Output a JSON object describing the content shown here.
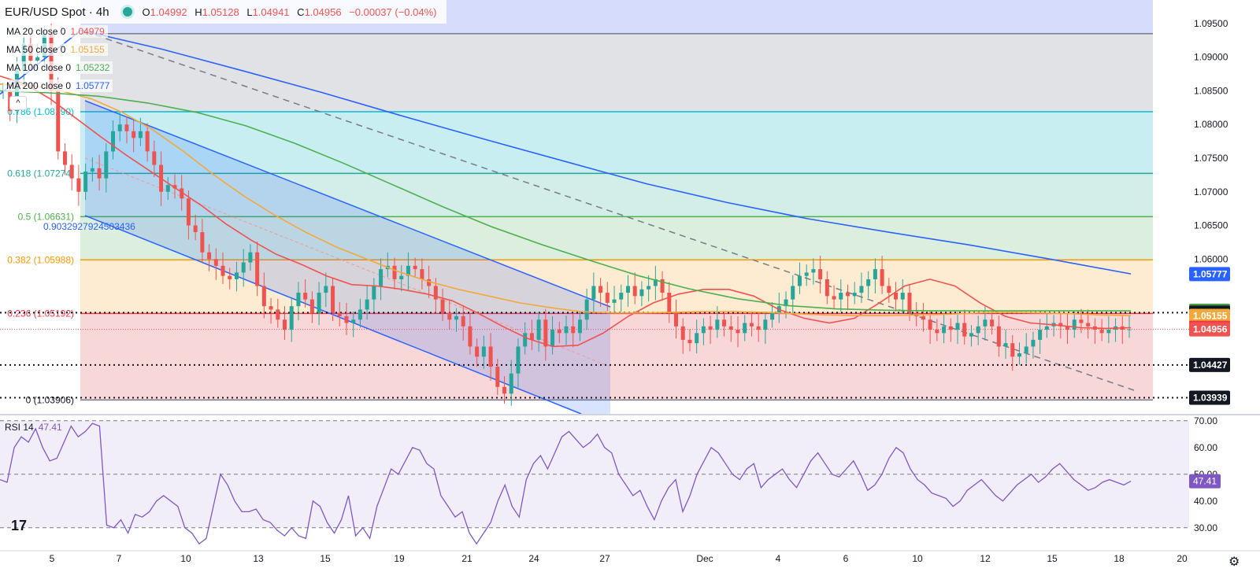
{
  "header": {
    "symbol": "EUR/USD Spot · 4h",
    "open": "1.04992",
    "high": "1.05128",
    "low": "1.04941",
    "close": "1.04956",
    "change": "−0.00037 (−0.04%)",
    "labels": {
      "o": "O",
      "h": "H",
      "l": "L",
      "c": "C"
    }
  },
  "legend": [
    {
      "name": "MA 20 close 0",
      "value": "1.04979",
      "color": "#ef5350"
    },
    {
      "name": "MA 50 close 0",
      "value": "1.05155",
      "color": "#f2a93b"
    },
    {
      "name": "MA 100 close 0",
      "value": "1.05232",
      "color": "#4caf50"
    },
    {
      "name": "MA 200 close 0",
      "value": "1.05777",
      "color": "#2962ff"
    }
  ],
  "rsi_legend": {
    "name": "RSI 14",
    "value": "47.41"
  },
  "icons": {
    "collapse": "chevron-up-icon",
    "logo": "tradingview-logo-icon",
    "settings": "gear-icon"
  },
  "colors": {
    "up": "#26a69a",
    "down": "#ef5350",
    "ma20": "#ef5350",
    "ma50": "#f2a93b",
    "ma100": "#4caf50",
    "ma200": "#2962ff",
    "rsi": "#7e57c2"
  },
  "chart_data": [
    {
      "type": "candlestick",
      "title": "EUR/USD Spot · 4h",
      "ylim": [
        1.037,
        1.0985
      ],
      "price_ticks": [
        "1.09500",
        "1.09000",
        "1.08500",
        "1.08000",
        "1.07500",
        "1.07000",
        "1.06500",
        "1.06000"
      ],
      "x_ticks": [
        "5",
        "7",
        "10",
        "13",
        "15",
        "19",
        "21",
        "24",
        "27",
        "Dec",
        "4",
        "6",
        "10",
        "12",
        "15",
        "18",
        "20"
      ],
      "fibonacci": [
        {
          "level": "0.786",
          "value": "1.08190",
          "color": "#00bcd4"
        },
        {
          "level": "0.618",
          "value": "1.07274",
          "color": "#26a69a"
        },
        {
          "level": "0.5",
          "value": "1.06631",
          "color": "#4caf50"
        },
        {
          "level": "0.382",
          "value": "1.05988",
          "color": "#ff9800"
        },
        {
          "level": "0.236",
          "value": "1.05192",
          "color": "#f23645"
        },
        {
          "level": "0",
          "value": "1.03906",
          "color": "#787b86"
        }
      ],
      "fib_top_value": 1.0935,
      "channel_label": "0.9032927924503436",
      "price_labels": [
        {
          "value": "1.05777",
          "bg": "#2962ff"
        },
        {
          "value": "1.05232",
          "bg": "#43a047"
        },
        {
          "value": "1.05204",
          "bg": "#131722"
        },
        {
          "value": "1.05155",
          "bg": "#f2a93b"
        },
        {
          "value": "1.04979",
          "bg": "#f23645"
        },
        {
          "value": "1.04956",
          "bg": "#ef5350"
        },
        {
          "value": "1.04427",
          "bg": "#131722"
        },
        {
          "value": "1.03939",
          "bg": "#131722"
        }
      ],
      "horizontal_lines": [
        1.05204,
        1.04427,
        1.03939
      ],
      "current_price": 1.04956,
      "candles_close": [
        1.085,
        1.082,
        1.088,
        1.092,
        1.0895,
        1.09,
        1.0935,
        1.085,
        1.076,
        1.074,
        1.072,
        1.07,
        1.073,
        1.0735,
        1.072,
        1.076,
        1.079,
        1.08,
        1.079,
        1.078,
        1.079,
        1.076,
        1.074,
        1.07,
        1.071,
        1.0705,
        1.069,
        1.065,
        1.064,
        1.061,
        1.06,
        1.059,
        1.0575,
        1.057,
        1.058,
        1.0595,
        1.061,
        1.056,
        1.053,
        1.0525,
        1.051,
        1.0495,
        1.053,
        1.055,
        1.054,
        1.052,
        1.055,
        1.056,
        1.052,
        1.0515,
        1.0505,
        1.051,
        1.0525,
        1.054,
        1.056,
        1.0585,
        1.059,
        1.057,
        1.0575,
        1.059,
        1.0585,
        1.057,
        1.056,
        1.054,
        1.052,
        1.051,
        1.0515,
        1.05,
        1.047,
        1.0455,
        1.047,
        1.044,
        1.041,
        1.04,
        1.043,
        1.047,
        1.049,
        1.048,
        1.051,
        1.047,
        1.0495,
        1.049,
        1.05,
        1.049,
        1.051,
        1.054,
        1.056,
        1.055,
        1.0535,
        1.054,
        1.055,
        1.056,
        1.0545,
        1.0555,
        1.056,
        1.057,
        1.055,
        1.052,
        1.05,
        1.048,
        1.0475,
        1.049,
        1.05,
        1.0495,
        1.051,
        1.05,
        1.0495,
        1.049,
        1.0505,
        1.05,
        1.0495,
        1.051,
        1.052,
        1.053,
        1.054,
        1.056,
        1.0575,
        1.058,
        1.0585,
        1.057,
        1.0545,
        1.054,
        1.055,
        1.0545,
        1.055,
        1.056,
        1.057,
        1.0585,
        1.056,
        1.055,
        1.054,
        1.055,
        1.052,
        1.0515,
        1.051,
        1.0495,
        1.049,
        1.05,
        1.0495,
        1.0505,
        1.0485,
        1.049,
        1.05,
        1.051,
        1.05,
        1.047,
        1.0475,
        1.0455,
        1.046,
        1.047,
        1.048,
        1.0495,
        1.05,
        1.0505,
        1.05,
        1.0495,
        1.051,
        1.0505,
        1.05,
        1.0495,
        1.049,
        1.0495,
        1.05,
        1.0495,
        1.04956
      ],
      "ma": [
        {
          "name": "MA 20 close 0",
          "color": "#ef5350",
          "values": [
            1.0872,
            1.086,
            1.0838,
            1.081,
            1.0782,
            1.0755,
            1.073,
            1.0705,
            1.068,
            1.0652,
            1.0628,
            1.0607,
            1.0592,
            1.0575,
            1.0562,
            1.056,
            1.0555,
            1.0548,
            1.0538,
            1.052,
            1.05,
            1.0482,
            1.047,
            1.0472,
            1.049,
            1.0515,
            1.0535,
            1.0548,
            1.0555,
            1.0555,
            1.0545,
            1.0525,
            1.0512,
            1.0505,
            1.0512,
            1.0535,
            1.056,
            1.057,
            1.056,
            1.0535,
            1.0515,
            1.0505,
            1.0502,
            1.0498,
            1.0497,
            1.0498
          ]
        },
        {
          "name": "MA 50 close 0",
          "color": "#f2a93b",
          "values": [
            1.086,
            1.0858,
            1.085,
            1.0838,
            1.0818,
            1.0792,
            1.076,
            1.0725,
            1.0693,
            1.0665,
            1.064,
            1.0618,
            1.06,
            1.0582,
            1.0567,
            1.0555,
            1.0545,
            1.0535,
            1.0528,
            1.0522,
            1.052,
            1.052,
            1.0521,
            1.0522,
            1.0522,
            1.0521,
            1.0519,
            1.0517,
            1.0516,
            1.0516,
            1.0517,
            1.0518,
            1.052,
            1.0521,
            1.052,
            1.0519,
            1.0517,
            1.0516
          ]
        },
        {
          "name": "MA 100 close 0",
          "color": "#4caf50",
          "values": [
            1.085,
            1.0847,
            1.0842,
            1.0832,
            1.0818,
            1.0798,
            1.0772,
            1.0742,
            1.071,
            1.0678,
            1.0648,
            1.0622,
            1.0598,
            1.0575,
            1.0556,
            1.0541,
            1.0531,
            1.0526,
            1.0524,
            1.0523,
            1.0523,
            1.0523,
            1.0523,
            1.0523
          ]
        },
        {
          "name": "MA 200 close 0",
          "color": "#2962ff",
          "values": [
            1.0845,
            1.094,
            1.0912,
            1.088,
            1.0847,
            1.0812,
            1.0778,
            1.0745,
            1.0712,
            1.0684,
            1.066,
            1.064,
            1.0621,
            1.06,
            1.0578
          ]
        }
      ]
    },
    {
      "type": "line",
      "title": "RSI 14",
      "ylim": [
        22,
        72
      ],
      "y_ticks": [
        "70.00",
        "60.00",
        "50.00",
        "40.00",
        "30.00"
      ],
      "levels": [
        70,
        50,
        30
      ],
      "current": "47.41",
      "values": [
        48,
        47,
        60,
        64,
        62,
        67,
        60,
        55,
        56,
        62,
        68,
        64,
        66,
        69,
        68,
        31,
        30,
        33,
        28,
        35,
        34,
        36,
        40,
        42,
        40,
        38,
        30,
        28,
        24,
        26,
        38,
        50,
        46,
        40,
        36,
        36,
        37,
        33,
        32,
        29,
        27,
        30,
        27,
        26,
        40,
        38,
        32,
        28,
        33,
        42,
        27,
        30,
        26,
        38,
        45,
        52,
        50,
        55,
        60,
        59,
        54,
        52,
        42,
        38,
        34,
        36,
        28,
        24,
        28,
        32,
        40,
        46,
        38,
        34,
        48,
        54,
        57,
        52,
        58,
        64,
        66,
        63,
        60,
        62,
        65,
        60,
        58,
        50,
        46,
        42,
        44,
        38,
        33,
        40,
        45,
        48,
        36,
        42,
        50,
        55,
        60,
        58,
        54,
        50,
        48,
        52,
        54,
        45,
        48,
        50,
        52,
        48,
        45,
        50,
        55,
        58,
        54,
        50,
        49,
        52,
        55,
        50,
        44,
        46,
        50,
        56,
        60,
        58,
        52,
        48,
        46,
        43,
        42,
        41,
        38,
        40,
        44,
        46,
        48,
        45,
        42,
        40,
        43,
        46,
        48,
        50,
        47,
        49,
        52,
        54,
        51,
        48,
        46,
        44,
        45,
        47,
        48,
        47,
        46,
        47.41
      ]
    }
  ]
}
